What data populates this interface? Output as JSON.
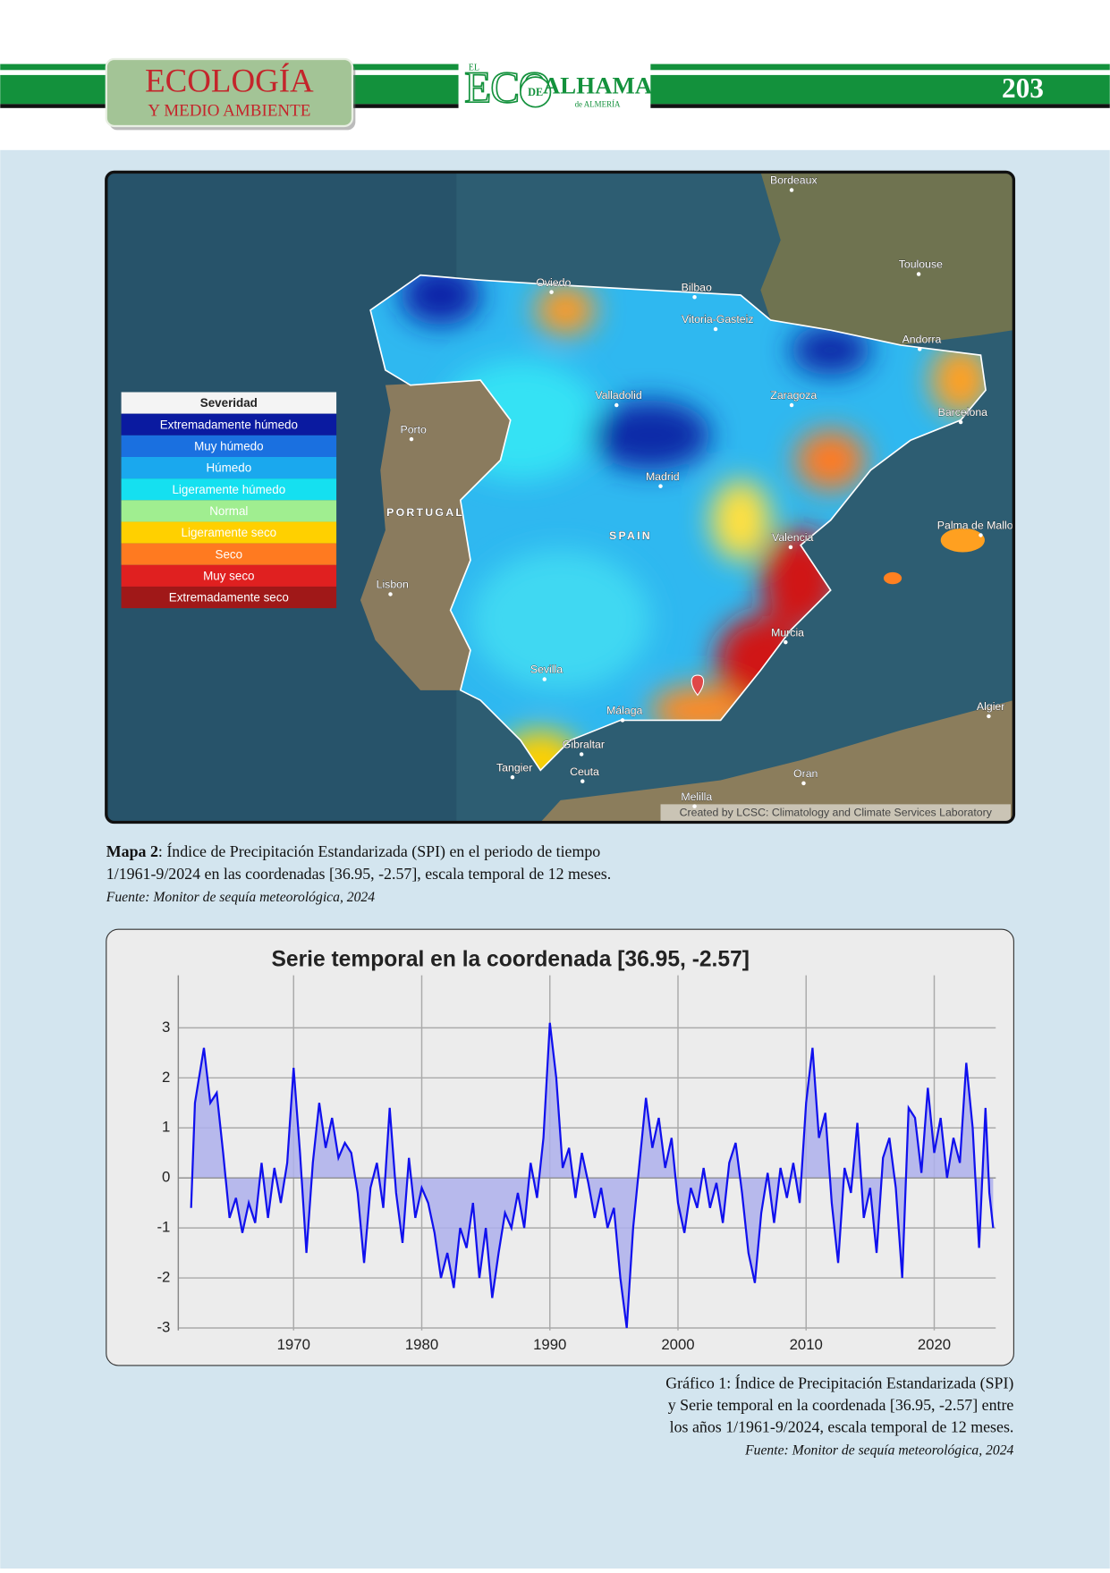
{
  "header": {
    "section_title": "ECOLOGÍA",
    "section_subtitle": "Y MEDIO AMBIENTE",
    "logo": {
      "el": "EL",
      "eco": "ECO",
      "de": "DE",
      "alhama": "ALHAMA",
      "almeria": "de ALMERÍA"
    },
    "page_number": "203"
  },
  "map": {
    "legend": {
      "title": "Severidad",
      "items": [
        "Extremadamente húmedo",
        "Muy húmedo",
        "Húmedo",
        "Ligeramente húmedo",
        "Normal",
        "Ligeramente seco",
        "Seco",
        "Muy seco",
        "Extremadamente seco"
      ]
    },
    "labels": [
      "Bordeaux",
      "Toulouse",
      "Oviedo",
      "Bilbao",
      "Vitoria-Gasteiz",
      "Andorra",
      "Valladolid",
      "Zaragoza",
      "Barcelona",
      "Porto",
      "Madrid",
      "PORTUGAL",
      "SPAIN",
      "Valencia",
      "Palma de Mallorca",
      "Lisbon",
      "Murcia",
      "Sevilla",
      "Algier",
      "Málaga",
      "Gibraltar",
      "Tangier",
      "Ceuta",
      "Oran",
      "Melilla"
    ],
    "credit": "Created by LCSC: Climatology and Climate Services Laboratory"
  },
  "map_caption": {
    "label": "Mapa 2",
    "lines": [
      ": Índice de Precipitación Estandarizada (SPI) en el periodo de tiempo",
      "1/1961-9/2024 en las coordenadas [36.95, -2.57], escala temporal de 12 meses."
    ],
    "source": "Fuente: Monitor de sequía meteorológica, 2024"
  },
  "chart_data": {
    "type": "line",
    "title": "Serie temporal en la coordenada [36.95, -2.57]",
    "color": "#1010ee",
    "fill_color": "#aeb0ec",
    "grid": true,
    "xlim": [
      1961,
      2024.8
    ],
    "ylim": [
      -3.05,
      4.05
    ],
    "xticks": [
      1970,
      1980,
      1990,
      2000,
      2010,
      2020
    ],
    "yticks": [
      -3,
      -2,
      -1,
      0,
      1,
      2,
      3
    ],
    "x": [
      1962.0,
      1962.3,
      1963.0,
      1963.5,
      1964.0,
      1964.5,
      1965.0,
      1965.5,
      1966.0,
      1966.5,
      1967.0,
      1967.5,
      1968.0,
      1968.5,
      1969.0,
      1969.5,
      1970.0,
      1970.5,
      1971.0,
      1971.5,
      1972.0,
      1972.5,
      1973.0,
      1973.5,
      1974.0,
      1974.5,
      1975.0,
      1975.5,
      1976.0,
      1976.5,
      1977.0,
      1977.5,
      1978.0,
      1978.5,
      1979.0,
      1979.5,
      1980.0,
      1980.5,
      1981.0,
      1981.5,
      1982.0,
      1982.5,
      1983.0,
      1983.5,
      1984.0,
      1984.5,
      1985.0,
      1985.5,
      1986.0,
      1986.5,
      1987.0,
      1987.5,
      1988.0,
      1988.5,
      1989.0,
      1989.5,
      1990.0,
      1990.5,
      1991.0,
      1991.5,
      1992.0,
      1992.5,
      1993.0,
      1993.5,
      1994.0,
      1994.5,
      1995.0,
      1995.5,
      1996.0,
      1996.5,
      1997.0,
      1997.5,
      1998.0,
      1998.5,
      1999.0,
      1999.5,
      2000.0,
      2000.5,
      2001.0,
      2001.5,
      2002.0,
      2002.5,
      2003.0,
      2003.5,
      2004.0,
      2004.5,
      2005.0,
      2005.5,
      2006.0,
      2006.5,
      2007.0,
      2007.5,
      2008.0,
      2008.5,
      2009.0,
      2009.5,
      2010.0,
      2010.5,
      2011.0,
      2011.5,
      2012.0,
      2012.5,
      2013.0,
      2013.5,
      2014.0,
      2014.5,
      2015.0,
      2015.5,
      2016.0,
      2016.5,
      2017.0,
      2017.5,
      2018.0,
      2018.5,
      2019.0,
      2019.5,
      2020.0,
      2020.5,
      2021.0,
      2021.5,
      2022.0,
      2022.5,
      2023.0,
      2023.5,
      2024.0,
      2024.3,
      2024.6
    ],
    "values": [
      -0.6,
      1.5,
      2.6,
      1.5,
      1.7,
      0.5,
      -0.8,
      -0.4,
      -1.1,
      -0.5,
      -0.9,
      0.3,
      -0.8,
      0.2,
      -0.5,
      0.3,
      2.2,
      0.5,
      -1.5,
      0.3,
      1.5,
      0.6,
      1.2,
      0.4,
      0.7,
      0.5,
      -0.3,
      -1.7,
      -0.2,
      0.3,
      -0.6,
      1.4,
      -0.3,
      -1.3,
      0.4,
      -0.8,
      -0.2,
      -0.5,
      -1.1,
      -2.0,
      -1.5,
      -2.2,
      -1.0,
      -1.4,
      -0.5,
      -2.0,
      -1.0,
      -2.4,
      -1.5,
      -0.7,
      -1.0,
      -0.3,
      -1.0,
      0.3,
      -0.4,
      0.8,
      3.1,
      2.0,
      0.2,
      0.6,
      -0.4,
      0.5,
      -0.1,
      -0.8,
      -0.2,
      -1.0,
      -0.6,
      -2.0,
      -3.0,
      -1.0,
      0.3,
      1.6,
      0.6,
      1.2,
      0.2,
      0.8,
      -0.5,
      -1.1,
      -0.2,
      -0.6,
      0.2,
      -0.6,
      -0.1,
      -0.9,
      0.3,
      0.7,
      -0.3,
      -1.5,
      -2.1,
      -0.7,
      0.1,
      -0.9,
      0.2,
      -0.4,
      0.3,
      -0.5,
      1.5,
      2.6,
      0.8,
      1.3,
      -0.5,
      -1.7,
      0.2,
      -0.3,
      1.1,
      -0.8,
      -0.2,
      -1.5,
      0.4,
      0.8,
      -0.2,
      -2.0,
      1.4,
      1.2,
      0.1,
      1.8,
      0.5,
      1.2,
      0.0,
      0.8,
      0.3,
      2.3,
      1.0,
      -1.4,
      1.4,
      -0.3,
      -1.0
    ]
  },
  "chart_caption": {
    "lines": [
      "Gráfico 1: Índice de Precipitación Estandarizada (SPI)",
      "y Serie temporal en la coordenada [36.95, -2.57] entre",
      "los años 1/1961-9/2024, escala temporal de 12 meses."
    ],
    "source": "Fuente: Monitor de sequía meteorológica, 2024"
  }
}
